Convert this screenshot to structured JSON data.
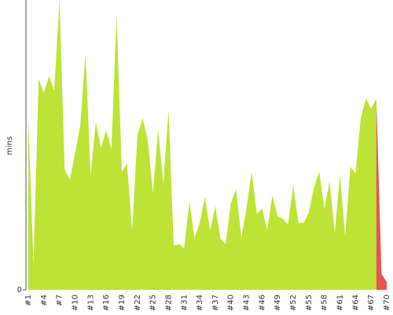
{
  "chart_data": {
    "type": "area",
    "y_label": "mins",
    "categories": [
      "#1",
      null,
      null,
      "#4",
      null,
      null,
      "#7",
      null,
      null,
      "#10",
      null,
      null,
      "#13",
      null,
      null,
      "#16",
      null,
      null,
      "#19",
      null,
      null,
      "#22",
      null,
      null,
      "#25",
      null,
      null,
      "#28",
      null,
      null,
      "#31",
      null,
      null,
      "#34",
      null,
      null,
      "#37",
      null,
      null,
      "#40",
      null,
      null,
      "#43",
      null,
      null,
      "#46",
      null,
      null,
      "#49",
      null,
      null,
      "#52",
      null,
      null,
      "#55",
      null,
      null,
      "#58",
      null,
      null,
      "#61",
      null,
      null,
      "#64",
      null,
      null,
      "#67",
      null,
      null,
      "#70"
    ],
    "series": [
      {
        "color": "#bde336",
        "values": [
          218,
          33,
          268,
          250,
          271,
          253,
          368,
          153,
          140,
          173,
          208,
          300,
          146,
          213,
          180,
          203,
          178,
          350,
          150,
          160,
          76,
          196,
          218,
          190,
          123,
          203,
          135,
          228,
          56,
          58,
          53,
          112,
          66,
          85,
          118,
          75,
          106,
          65,
          58,
          110,
          128,
          66,
          103,
          150,
          96,
          103,
          76,
          120,
          93,
          90,
          83,
          133,
          85,
          85,
          98,
          130,
          150,
          103,
          138,
          73,
          146,
          68,
          156,
          148,
          218,
          243,
          230,
          243,
          null,
          null
        ]
      },
      {
        "color": "#e8544e",
        "values": [
          null,
          null,
          null,
          null,
          null,
          null,
          null,
          null,
          null,
          null,
          null,
          null,
          null,
          null,
          null,
          null,
          null,
          null,
          null,
          null,
          null,
          null,
          null,
          null,
          null,
          null,
          null,
          null,
          null,
          null,
          null,
          null,
          null,
          null,
          null,
          null,
          null,
          null,
          null,
          null,
          null,
          null,
          null,
          null,
          null,
          null,
          null,
          null,
          null,
          null,
          null,
          null,
          null,
          null,
          null,
          null,
          null,
          null,
          null,
          null,
          null,
          null,
          null,
          null,
          null,
          null,
          null,
          243,
          20,
          10
        ]
      }
    ],
    "ylim": [
      0,
      368
    ],
    "yticks": [
      0
    ]
  }
}
